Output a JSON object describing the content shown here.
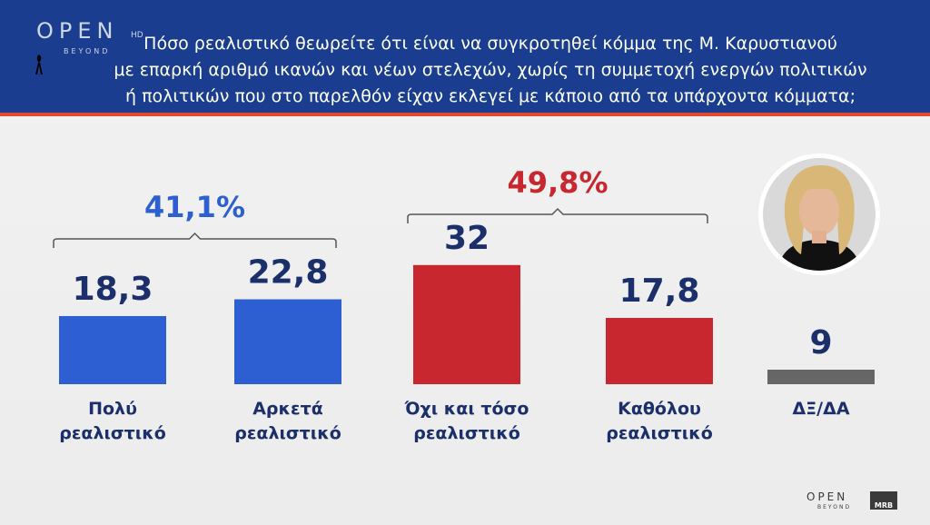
{
  "header": {
    "logo": "OPEN",
    "logo_sub": "BEYOND",
    "logo_hd": "HD",
    "question_lines": [
      "Πόσο ρεαλιστικό θεωρείτε ότι είναι να συγκροτηθεί κόμμα της Μ. Καρυστιανού",
      "με επαρκή αριθμό ικανών και νέων στελεχών, χωρίς τη συμμετοχή ενεργών πολιτικών",
      "ή πολιτικών που στο παρελθόν είχαν εκλεγεί με κάποιο από τα υπάρχοντα κόμματα;"
    ]
  },
  "chart_data": {
    "type": "bar",
    "categories": [
      [
        "Πολύ",
        "ρεαλιστικό"
      ],
      [
        "Αρκετά",
        "ρεαλιστικό"
      ],
      [
        "Όχι και τόσο",
        "ρεαλιστικό"
      ],
      [
        "Καθόλου",
        "ρεαλιστικό"
      ],
      [
        "ΔΞ/ΔΑ"
      ]
    ],
    "values": [
      18.3,
      22.8,
      32,
      17.8,
      9
    ],
    "value_labels": [
      "18,3",
      "22,8",
      "32",
      "17,8",
      "9"
    ],
    "colors": [
      "#2d5fd3",
      "#2d5fd3",
      "#c9272f",
      "#c9272f",
      "#666666"
    ],
    "label_colors": [
      "#1b2f6b",
      "#1b2f6b",
      "#1b2f6b",
      "#1b2f6b",
      "#1b2f6b"
    ],
    "groups": [
      {
        "label": "41,1%",
        "members": [
          0,
          1
        ],
        "color": "#2d5fd3"
      },
      {
        "label": "49,8%",
        "members": [
          2,
          3
        ],
        "color": "#c9272f"
      }
    ]
  },
  "footer": {
    "logo": "OPEN",
    "logo_sub": "BEYOND",
    "mrb": "MRB"
  }
}
